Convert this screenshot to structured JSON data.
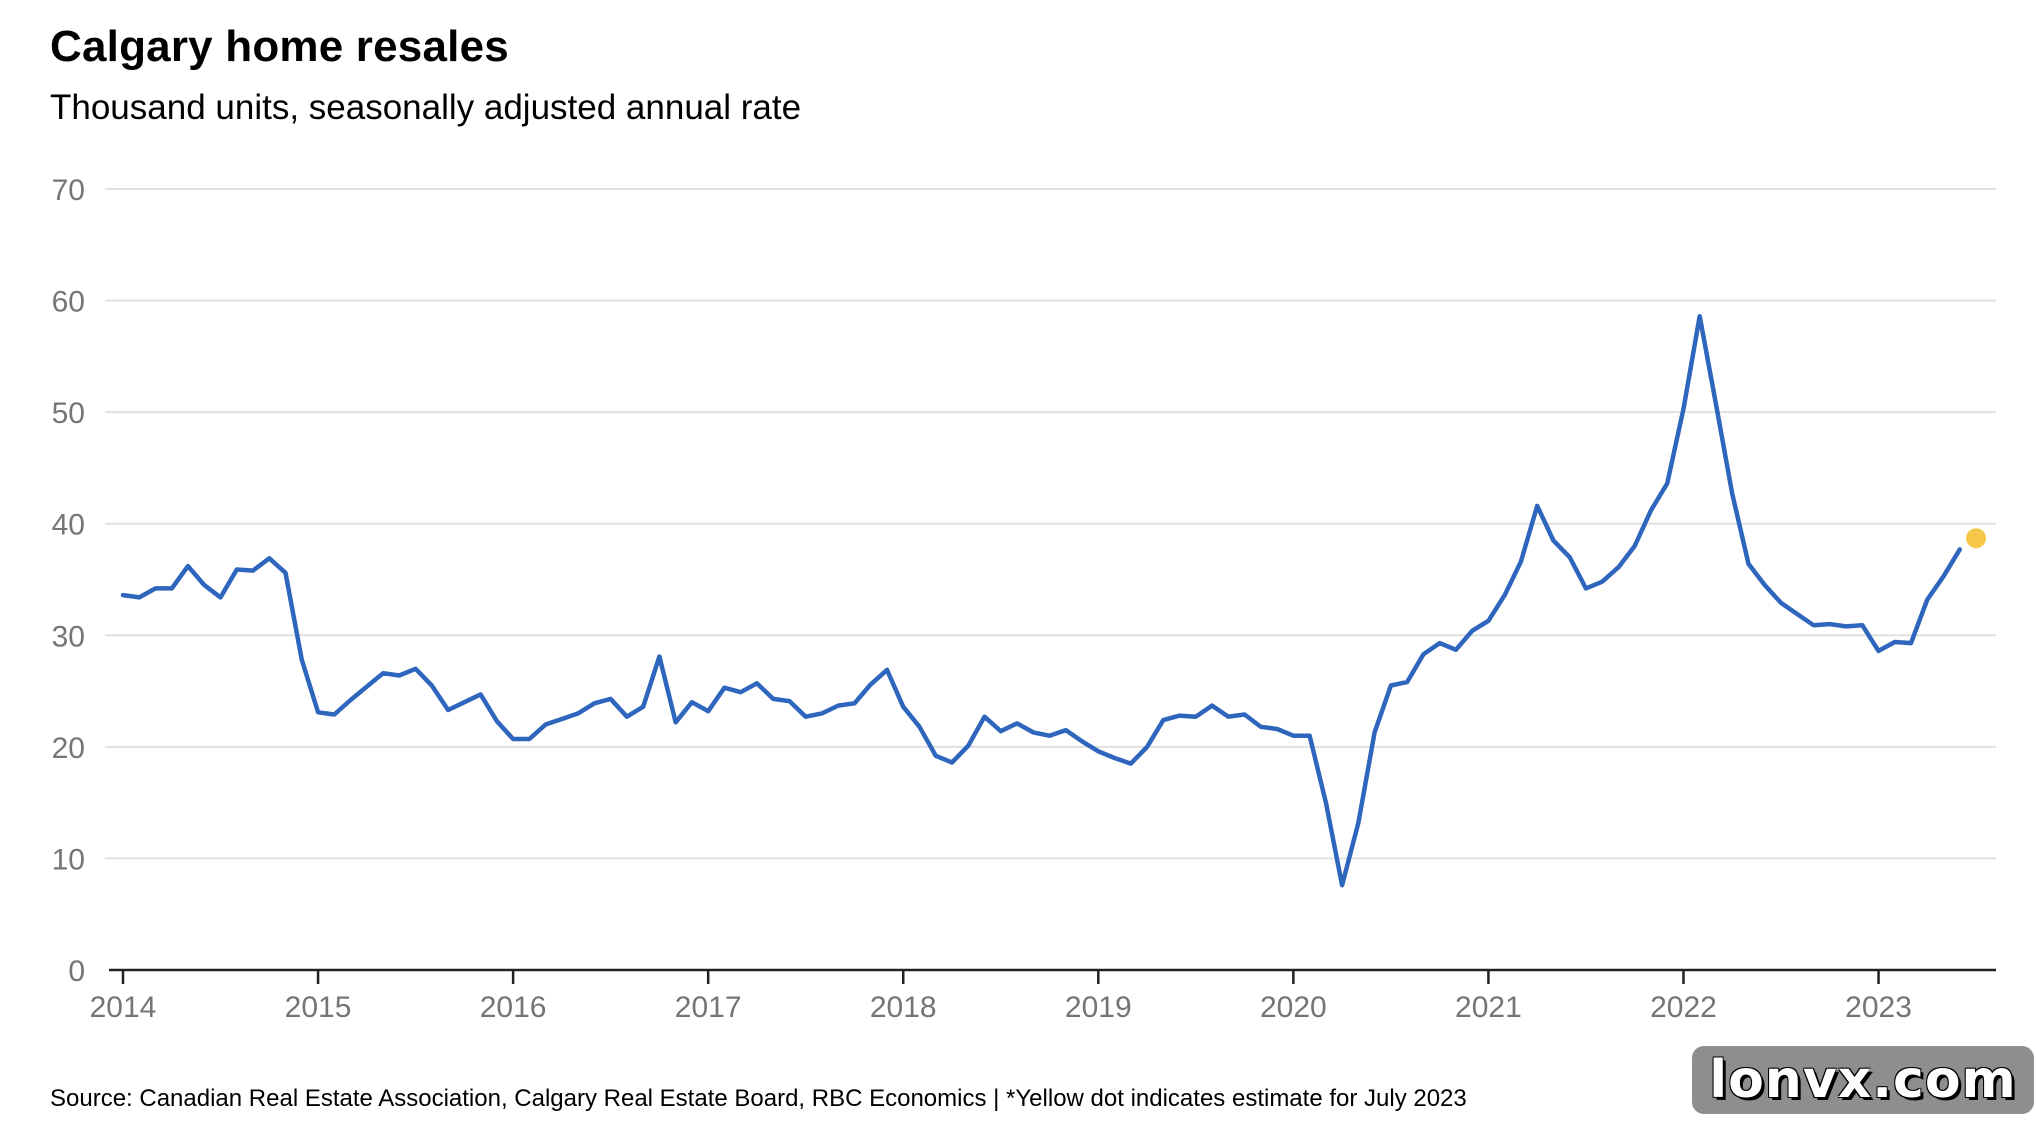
{
  "header": {
    "title": "Calgary home resales",
    "subtitle": "Thousand units, seasonally adjusted annual rate"
  },
  "footer": {
    "source": "Source: Canadian Real Estate Association, Calgary Real Estate Board, RBC Economics | *Yellow dot indicates estimate for July 2023"
  },
  "watermark": {
    "text": "lonvx.com"
  },
  "colors": {
    "line": "#2f66bd",
    "estimate_dot": "#f5c84c",
    "grid": "#e0e0e0",
    "axis": "#222222",
    "tick_text": "#757575"
  },
  "chart_data": {
    "type": "line",
    "title": "Calgary home resales",
    "subtitle": "Thousand units, seasonally adjusted annual rate",
    "xlabel": "",
    "ylabel": "",
    "ylim": [
      0,
      70
    ],
    "yticks": [
      0,
      10,
      20,
      30,
      40,
      50,
      60,
      70
    ],
    "x_start": "2014-01",
    "xticks": [
      "2014",
      "2015",
      "2016",
      "2017",
      "2018",
      "2019",
      "2020",
      "2021",
      "2022",
      "2023"
    ],
    "grid": true,
    "legend": "none",
    "series": [
      {
        "values": [
          33.6,
          33.4,
          34.2,
          34.2,
          36.2,
          34.5,
          33.4,
          35.9,
          35.8,
          36.9,
          35.6,
          27.8,
          23.1,
          22.9,
          24.2,
          25.4,
          26.6,
          26.4,
          27.0,
          25.5,
          23.3,
          24.0,
          24.7,
          22.3,
          20.7,
          20.7,
          22.0,
          22.5,
          23.0,
          23.9,
          24.3,
          22.7,
          23.6,
          28.1,
          22.2,
          24.0,
          23.2,
          25.3,
          24.9,
          25.7,
          24.3,
          24.1,
          22.7,
          23.0,
          23.7,
          23.9,
          25.6,
          26.9,
          23.6,
          21.8,
          19.2,
          18.6,
          20.1,
          22.7,
          21.4,
          22.1,
          21.3,
          21.0,
          21.5,
          20.5,
          19.6,
          19.0,
          18.5,
          20.0,
          22.4,
          22.8,
          22.7,
          23.7,
          22.7,
          22.9,
          21.8,
          21.6,
          21.0,
          21.0,
          15.0,
          7.6,
          13.2,
          21.3,
          25.5,
          25.8,
          28.3,
          29.3,
          28.7,
          30.4,
          31.3,
          33.6,
          36.6,
          41.6,
          38.5,
          37.0,
          34.2,
          34.8,
          36.1,
          38.0,
          41.2,
          43.6,
          50.3,
          58.6,
          50.7,
          42.7,
          36.4,
          34.5,
          32.9,
          31.9,
          30.9,
          31.0,
          30.8,
          30.9,
          28.6,
          29.4,
          29.3,
          33.2,
          35.3,
          37.7
        ]
      }
    ],
    "estimate": {
      "month": "2023-07",
      "value": 38.7
    }
  }
}
